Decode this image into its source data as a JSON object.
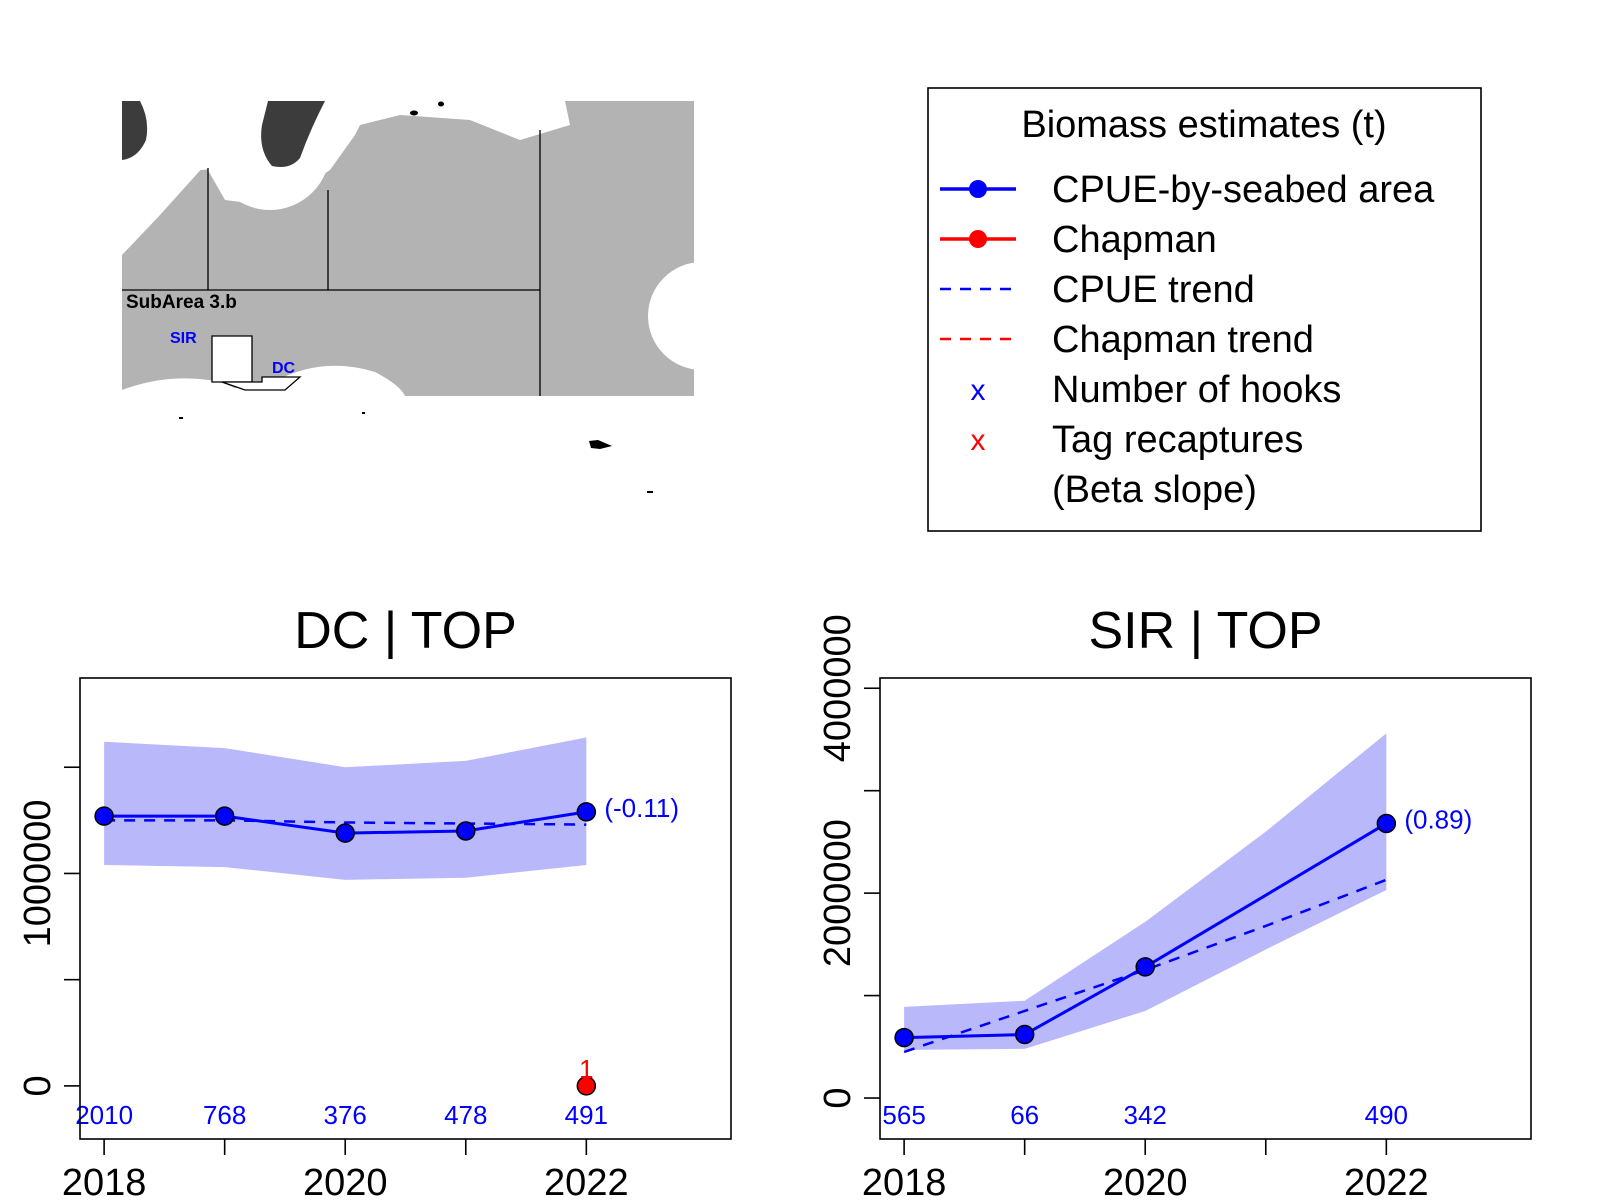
{
  "map": {
    "subarea_label": "SubArea 3.b",
    "sir_label": "SIR",
    "dc_label": "DC"
  },
  "legend": {
    "title": "Biomass estimates (t)",
    "items": [
      {
        "label": "CPUE-by-seabed area",
        "color": "#0000ff",
        "kind": "line-point"
      },
      {
        "label": "Chapman",
        "color": "#ff0000",
        "kind": "line-point"
      },
      {
        "label": "CPUE trend",
        "color": "#0000ff",
        "kind": "dash"
      },
      {
        "label": "Chapman trend",
        "color": "#ff0000",
        "kind": "dash"
      },
      {
        "label": "Number of hooks",
        "color": "#0000ff",
        "kind": "x"
      },
      {
        "label": "Tag recaptures",
        "color": "#ff0000",
        "kind": "x"
      },
      {
        "label": "(Beta slope)",
        "color": "",
        "kind": "none"
      }
    ]
  },
  "chart_data": [
    {
      "type": "line",
      "title": "DC | TOP",
      "xlabel": "",
      "ylabel": "",
      "x": [
        2018,
        2019,
        2020,
        2021,
        2022
      ],
      "xlim": [
        2018,
        2023
      ],
      "ylim": [
        -250000,
        1920000
      ],
      "x_tick_labels": [
        "2018",
        "",
        "2020",
        "",
        "2022"
      ],
      "y_ticks": [
        0,
        500000,
        1000000,
        1500000
      ],
      "y_tick_labels": [
        "0",
        "",
        "1000000",
        ""
      ],
      "series": [
        {
          "kind": "cpue",
          "color": "#0000ff",
          "values": [
            1270000,
            1270000,
            1190000,
            1200000,
            1290000
          ]
        },
        {
          "kind": "cpue_trend",
          "color": "#0000ff",
          "values": [
            1250000,
            1250000,
            1240000,
            1235000,
            1230000
          ]
        },
        {
          "kind": "chapman",
          "color": "#ff0000",
          "points": [
            {
              "x": 2022,
              "y": 0
            }
          ]
        }
      ],
      "band": {
        "lower": [
          1040000,
          1030000,
          970000,
          980000,
          1040000
        ],
        "upper": [
          1620000,
          1590000,
          1500000,
          1530000,
          1640000
        ]
      },
      "hooks": [
        {
          "x": 2018,
          "label": "2010"
        },
        {
          "x": 2019,
          "label": "768"
        },
        {
          "x": 2020,
          "label": "376"
        },
        {
          "x": 2021,
          "label": "478"
        },
        {
          "x": 2022,
          "label": "491"
        }
      ],
      "recaptures": [
        {
          "x": 2022,
          "label": "1"
        }
      ],
      "beta_label": "(-0.11)"
    },
    {
      "type": "line",
      "title": "SIR | TOP",
      "xlabel": "",
      "ylabel": "",
      "x": [
        2018,
        2019,
        2020,
        2021,
        2022
      ],
      "xlim": [
        2018,
        2023
      ],
      "ylim": [
        -400000,
        4100000
      ],
      "x_tick_labels": [
        "2018",
        "",
        "2020",
        "",
        "2022"
      ],
      "y_ticks": [
        0,
        1000000,
        2000000,
        3000000,
        4000000
      ],
      "y_tick_labels": [
        "0",
        "",
        "2000000",
        "",
        "4000000"
      ],
      "series": [
        {
          "kind": "cpue",
          "color": "#0000ff",
          "values": [
            590000,
            620000,
            1280000,
            null,
            2680000
          ]
        },
        {
          "kind": "cpue_trend",
          "color": "#0000ff",
          "values": [
            450000,
            850000,
            1250000,
            1680000,
            2130000
          ]
        }
      ],
      "band": {
        "lower": [
          470000,
          480000,
          850000,
          1450000,
          2030000
        ],
        "upper": [
          890000,
          950000,
          1720000,
          2600000,
          3560000
        ]
      },
      "hooks": [
        {
          "x": 2018,
          "label": "565"
        },
        {
          "x": 2019,
          "label": "66"
        },
        {
          "x": 2020,
          "label": "342"
        },
        {
          "x": 2022,
          "label": "490"
        }
      ],
      "recaptures": [],
      "beta_label": "(0.89)"
    }
  ]
}
